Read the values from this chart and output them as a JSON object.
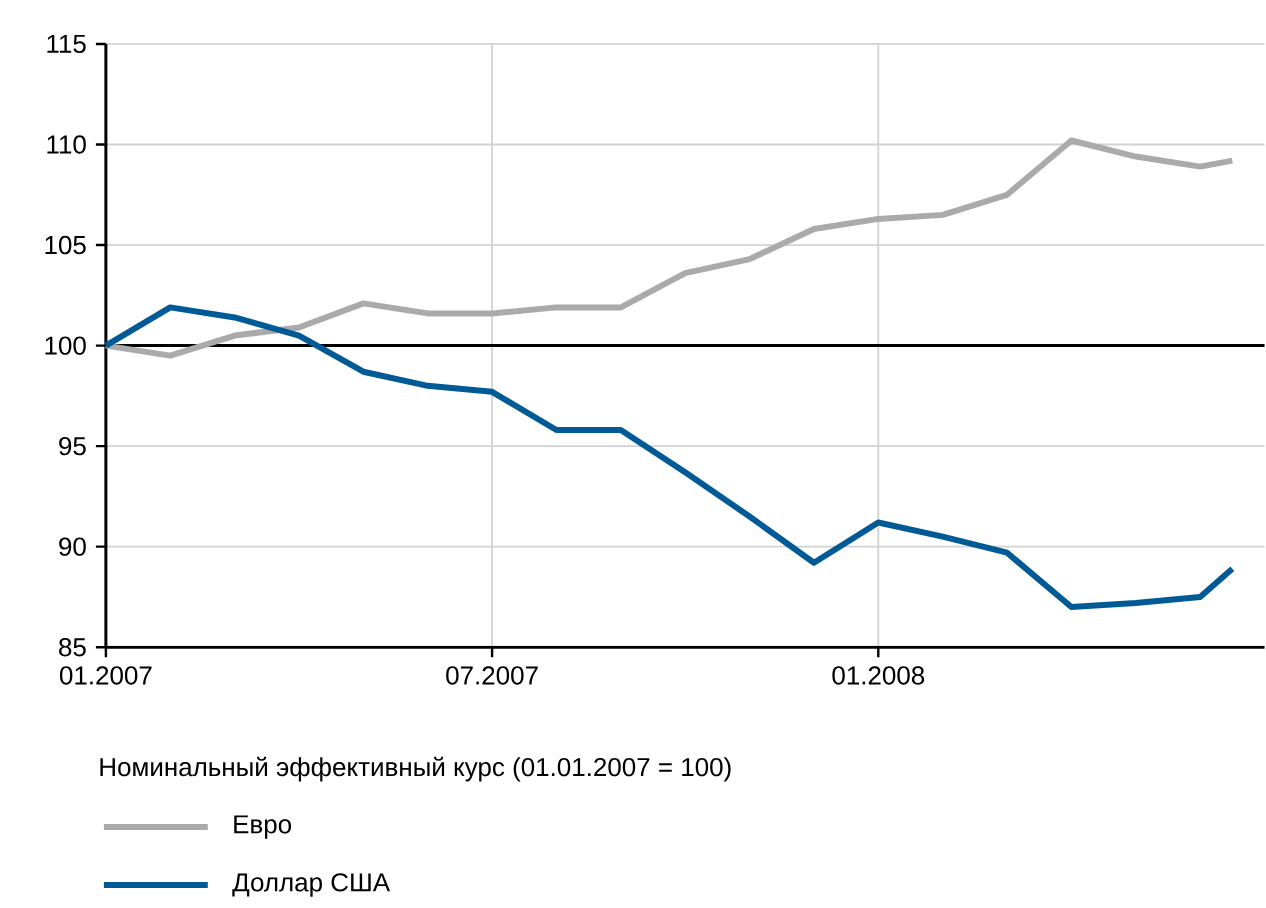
{
  "chart_data": {
    "type": "line",
    "legend_title": "Номинальный эффективный курс (01.01.2007 = 100)",
    "xlim": [
      "2007-01-01",
      "2008-07-01"
    ],
    "xticks": [
      {
        "value": "2007-01-01",
        "label": "01.2007"
      },
      {
        "value": "2007-07-01",
        "label": "07.2007"
      },
      {
        "value": "2008-01-01",
        "label": "01.2008"
      }
    ],
    "ylim": [
      85,
      115
    ],
    "yticks": [
      85,
      90,
      95,
      100,
      105,
      110,
      115
    ],
    "grid": true,
    "legend": "bottom",
    "line_style": "solid",
    "marker": "none",
    "ref_lines": [
      {
        "axis": "y",
        "value": 100,
        "color": "#000000"
      }
    ],
    "series": [
      {
        "name": "Евро",
        "color": "#aaaaad",
        "x": [
          "2007-01-01",
          "2007-02-01",
          "2007-03-01",
          "2007-04-01",
          "2007-05-01",
          "2007-06-01",
          "2007-07-01",
          "2007-08-01",
          "2007-09-01",
          "2007-10-01",
          "2007-11-01",
          "2007-12-01",
          "2008-01-01",
          "2008-02-01",
          "2008-03-01",
          "2008-04-01",
          "2008-05-01",
          "2008-06-01",
          "2008-06-16"
        ],
        "values": [
          100,
          99.5,
          100.5,
          100.9,
          102.1,
          101.6,
          101.6,
          101.9,
          101.9,
          103.6,
          104.3,
          105.8,
          106.3,
          106.5,
          107.5,
          110.2,
          109.4,
          108.9,
          109.2
        ]
      },
      {
        "name": "Доллар США",
        "color": "#005a96",
        "x": [
          "2007-01-01",
          "2007-02-01",
          "2007-03-01",
          "2007-04-01",
          "2007-05-01",
          "2007-06-01",
          "2007-07-01",
          "2007-08-01",
          "2007-09-01",
          "2007-10-01",
          "2007-11-01",
          "2007-12-01",
          "2008-01-01",
          "2008-02-01",
          "2008-03-01",
          "2008-04-01",
          "2008-05-01",
          "2008-06-01",
          "2008-06-16"
        ],
        "values": [
          100,
          101.9,
          101.4,
          100.5,
          98.7,
          98.0,
          97.7,
          95.8,
          95.8,
          93.7,
          91.5,
          89.2,
          91.2,
          90.5,
          89.7,
          87.0,
          87.2,
          87.5,
          88.9
        ]
      }
    ]
  }
}
